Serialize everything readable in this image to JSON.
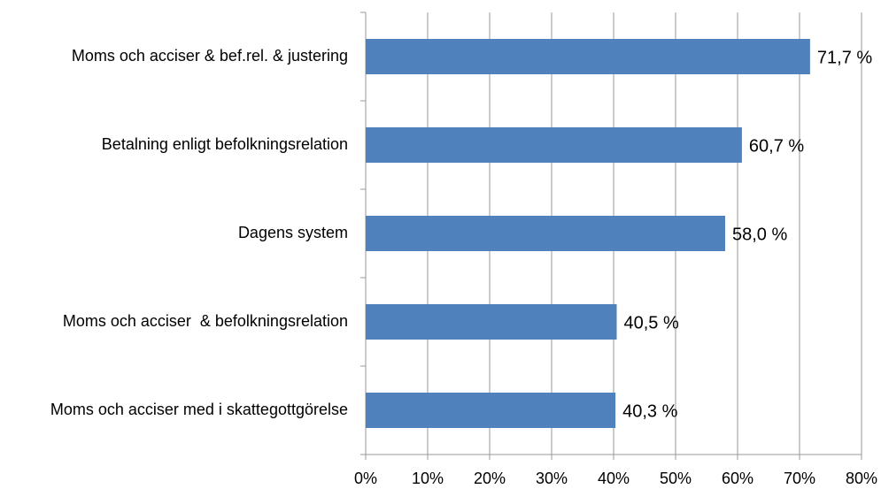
{
  "chart_data": {
    "type": "barh",
    "categories": [
      "Moms och acciser & bef.rel. & justering",
      "Betalning enligt befolkningsrelation",
      "Dagens system",
      "Moms och acciser  & befolkningsrelation",
      "Moms och acciser med i skattegottgörelse"
    ],
    "values": [
      71.7,
      60.7,
      58.0,
      40.5,
      40.3
    ],
    "value_labels": [
      "71,7 %",
      "60,7 %",
      "58,0 %",
      "40,5 %",
      "40,3 %"
    ],
    "color": "#4f81bd",
    "xlim": [
      0,
      80
    ],
    "xticks": [
      {
        "value": 0,
        "label": "0%"
      },
      {
        "value": 10,
        "label": "10%"
      },
      {
        "value": 20,
        "label": "20%"
      },
      {
        "value": 30,
        "label": "30%"
      },
      {
        "value": 40,
        "label": "40%"
      },
      {
        "value": 50,
        "label": "50%"
      },
      {
        "value": 60,
        "label": "60%"
      },
      {
        "value": 70,
        "label": "70%"
      },
      {
        "value": 80,
        "label": "80%"
      }
    ],
    "grid": true
  }
}
